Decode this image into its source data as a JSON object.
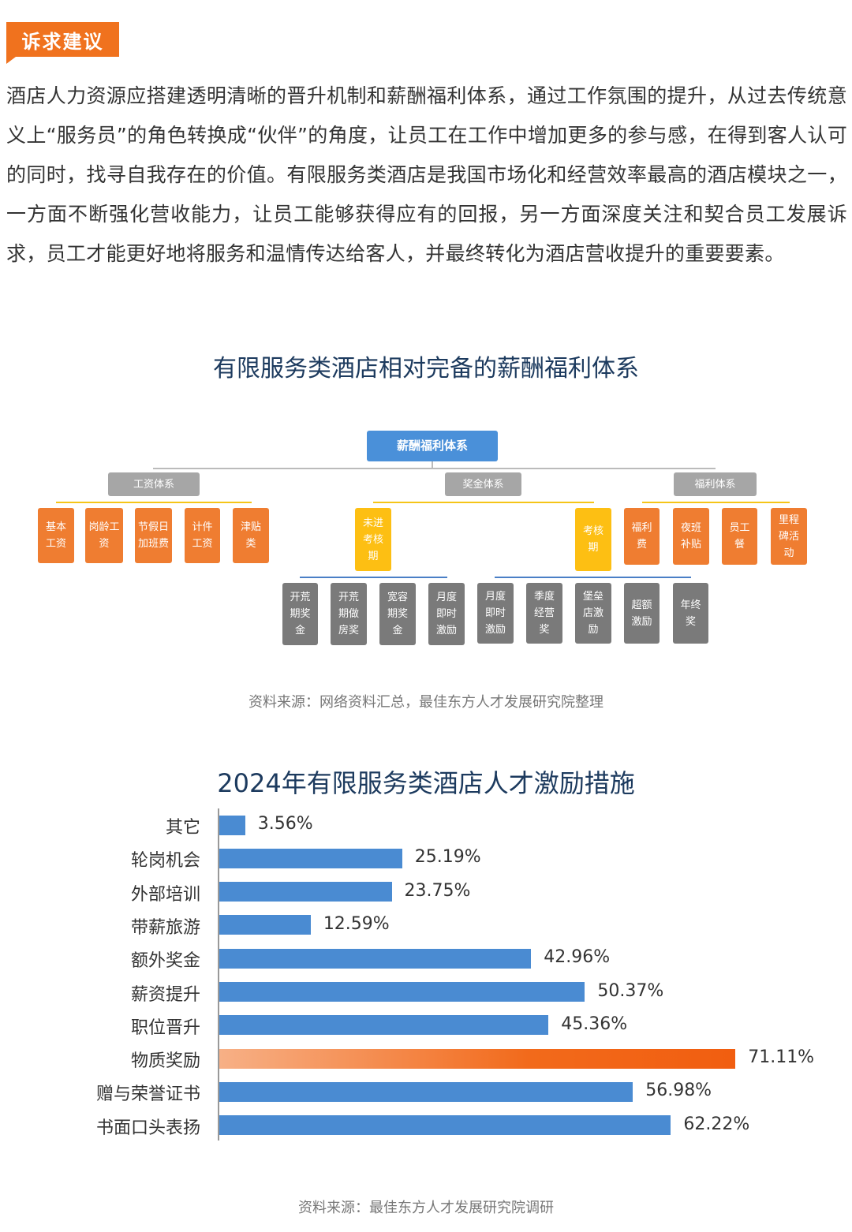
{
  "section_tag": "诉求建议",
  "paragraph": "酒店人力资源应搭建透明清晰的晋升机制和薪酬福利体系，通过工作氛围的提升，从过去传统意义上“服务员”的角色转换成“伙伴”的角度，让员工在工作中增加更多的参与感，在得到客人认可的同时，找寻自我存在的价值。有限服务类酒店是我国市场化和经营效率最高的酒店模块之一，一方面不断强化营收能力，让员工能够获得应有的回报，另一方面深度关注和契合员工发展诉求，员工才能更好地将服务和温情传达给客人，并最终转化为酒店营收提升的重要要素。",
  "org_chart": {
    "title": "有限服务类酒店相对完备的薪酬福利体系",
    "root": "薪酬福利体系",
    "branches": [
      "工资体系",
      "奖金体系",
      "福利体系"
    ],
    "salary_items": [
      "基本工资",
      "岗龄工资",
      "节假日加班费",
      "计件工资",
      "津贴类"
    ],
    "bonus_groups": [
      "未进考核期",
      "考核期"
    ],
    "pre_review_items": [
      "开荒期奖金",
      "开荒期做房奖",
      "宽容期奖金",
      "月度即时激励"
    ],
    "review_items": [
      "月度即时激励",
      "季度经营奖",
      "堡垒店激励",
      "超额激励",
      "年终奖"
    ],
    "welfare_items": [
      "福利费",
      "夜班补贴",
      "员工餐",
      "里程碑活动"
    ],
    "source": "资料来源：网络资料汇总，最佳东方人才发展研究院整理"
  },
  "chart_data": {
    "type": "bar",
    "orientation": "horizontal",
    "title": "2024年有限服务类酒店人才激励措施",
    "categories": [
      "其它",
      "轮岗机会",
      "外部培训",
      "带薪旅游",
      "额外奖金",
      "薪资提升",
      "职位晋升",
      "物质奖励",
      "赠与荣誉证书",
      "书面口头表扬"
    ],
    "values": [
      3.56,
      25.19,
      23.75,
      12.59,
      42.96,
      50.37,
      45.36,
      71.11,
      56.98,
      62.22
    ],
    "labels": [
      "3.56%",
      "25.19%",
      "23.75%",
      "12.59%",
      "42.96%",
      "50.37%",
      "45.36%",
      "71.11%",
      "56.98%",
      "62.22%"
    ],
    "unit": "%",
    "highlight_category": "物质奖励",
    "colors": {
      "bar": "#4a8bd2",
      "highlight": "#f26a1b"
    },
    "grid": false,
    "source": "资料来源：最佳东方人才发展研究院调研"
  }
}
